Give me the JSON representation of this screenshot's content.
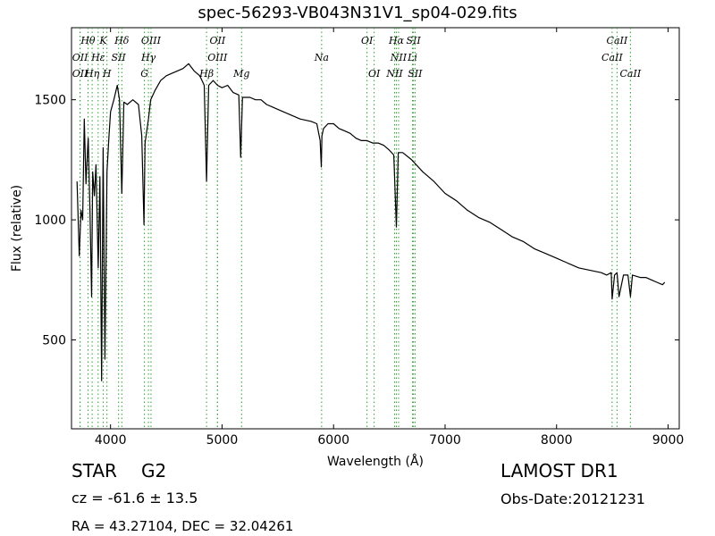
{
  "chart_data": {
    "type": "line",
    "title": "spec-56293-VB043N31V1_sp04-029.fits",
    "xlabel": "Wavelength (Å)",
    "ylabel": "Flux (relative)",
    "xlim": [
      3650,
      9100
    ],
    "ylim": [
      130,
      1800
    ],
    "xticks": [
      4000,
      5000,
      6000,
      7000,
      8000,
      9000
    ],
    "yticks": [
      500,
      1000,
      1500
    ],
    "grid": false,
    "line_color": "#000000",
    "marker_color": "#2ca02c",
    "series": [
      {
        "x": [
          3700,
          3720,
          3735,
          3750,
          3765,
          3780,
          3795,
          3800,
          3815,
          3830,
          3840,
          3855,
          3870,
          3890,
          3905,
          3920,
          3934,
          3950,
          3968,
          3985,
          4000,
          4030,
          4060,
          4080,
          4101,
          4120,
          4150,
          4200,
          4250,
          4280,
          4300,
          4310,
          4340,
          4360,
          4400,
          4450,
          4500,
          4550,
          4600,
          4650,
          4700,
          4750,
          4800,
          4840,
          4861,
          4880,
          4920,
          4960,
          5000,
          5050,
          5100,
          5150,
          5167,
          5183,
          5200,
          5250,
          5300,
          5350,
          5400,
          5450,
          5500,
          5600,
          5700,
          5800,
          5850,
          5880,
          5890,
          5896,
          5910,
          5950,
          6000,
          6050,
          6100,
          6150,
          6200,
          6250,
          6300,
          6350,
          6400,
          6450,
          6500,
          6540,
          6563,
          6580,
          6620,
          6700,
          6800,
          6900,
          7000,
          7100,
          7200,
          7300,
          7400,
          7500,
          7600,
          7700,
          7800,
          7900,
          8000,
          8100,
          8200,
          8300,
          8400,
          8450,
          8490,
          8498,
          8520,
          8542,
          8560,
          8600,
          8640,
          8662,
          8680,
          8750,
          8800,
          8850,
          8900,
          8950,
          8970
        ],
        "y": [
          1160,
          850,
          1040,
          1000,
          1420,
          1150,
          1300,
          1340,
          1050,
          680,
          1200,
          1100,
          1230,
          800,
          1180,
          330,
          1300,
          420,
          1200,
          1340,
          1450,
          1500,
          1560,
          1500,
          1110,
          1490,
          1480,
          1500,
          1480,
          1350,
          980,
          1320,
          1420,
          1500,
          1540,
          1580,
          1600,
          1610,
          1620,
          1630,
          1650,
          1620,
          1600,
          1560,
          1160,
          1560,
          1580,
          1560,
          1550,
          1560,
          1530,
          1520,
          1260,
          1510,
          1510,
          1510,
          1500,
          1500,
          1480,
          1470,
          1460,
          1440,
          1420,
          1410,
          1400,
          1330,
          1220,
          1350,
          1380,
          1400,
          1400,
          1380,
          1370,
          1360,
          1340,
          1330,
          1330,
          1320,
          1320,
          1310,
          1290,
          1270,
          970,
          1280,
          1280,
          1250,
          1200,
          1160,
          1110,
          1080,
          1040,
          1010,
          990,
          960,
          930,
          910,
          880,
          860,
          840,
          820,
          800,
          790,
          780,
          770,
          780,
          670,
          770,
          780,
          680,
          770,
          770,
          680,
          770,
          760,
          760,
          750,
          740,
          730,
          740
        ]
      }
    ],
    "lines": [
      {
        "label": "Hθ",
        "x": 3798,
        "row": 1
      },
      {
        "label": "K",
        "x": 3934,
        "row": 1
      },
      {
        "label": "Hδ",
        "x": 4101,
        "row": 1
      },
      {
        "label": "OIII",
        "x": 4363,
        "row": 1
      },
      {
        "label": "OII",
        "x": 4959,
        "row": 1
      },
      {
        "label": "OI",
        "x": 6300,
        "row": 1
      },
      {
        "label": "Hα",
        "x": 6563,
        "row": 1
      },
      {
        "label": "SII",
        "x": 6717,
        "row": 1
      },
      {
        "label": "CaII",
        "x": 8542,
        "row": 1
      },
      {
        "label": "OII",
        "x": 3727,
        "row": 2
      },
      {
        "label": "Hε",
        "x": 3889,
        "row": 2
      },
      {
        "label": "SII",
        "x": 4072,
        "row": 2
      },
      {
        "label": "Hγ",
        "x": 4340,
        "row": 2
      },
      {
        "label": "OIII",
        "x": 4959,
        "row": 2
      },
      {
        "label": "Na",
        "x": 5893,
        "row": 2
      },
      {
        "label": "NII",
        "x": 6583,
        "row": 2
      },
      {
        "label": "Li",
        "x": 6708,
        "row": 2
      },
      {
        "label": "CaII",
        "x": 8498,
        "row": 2
      },
      {
        "label": "OII",
        "x": 3727,
        "row": 3
      },
      {
        "label": "Hη",
        "x": 3835,
        "row": 3
      },
      {
        "label": "H",
        "x": 3968,
        "row": 3
      },
      {
        "label": "G",
        "x": 4304,
        "row": 3
      },
      {
        "label": "Hβ",
        "x": 4861,
        "row": 3
      },
      {
        "label": "Mg",
        "x": 5175,
        "row": 3
      },
      {
        "label": "OI",
        "x": 6364,
        "row": 3
      },
      {
        "label": "NII",
        "x": 6548,
        "row": 3
      },
      {
        "label": "SII",
        "x": 6731,
        "row": 3
      },
      {
        "label": "CaII",
        "x": 8662,
        "row": 3
      }
    ]
  },
  "info": {
    "class_label": "STAR",
    "subclass_label": "G2",
    "cz_text": "cz = -61.6 ± 13.5",
    "radec_text": "RA = 43.27104, DEC = 32.04261",
    "survey": "LAMOST DR1",
    "obs_date": "Obs-Date:20121231"
  }
}
